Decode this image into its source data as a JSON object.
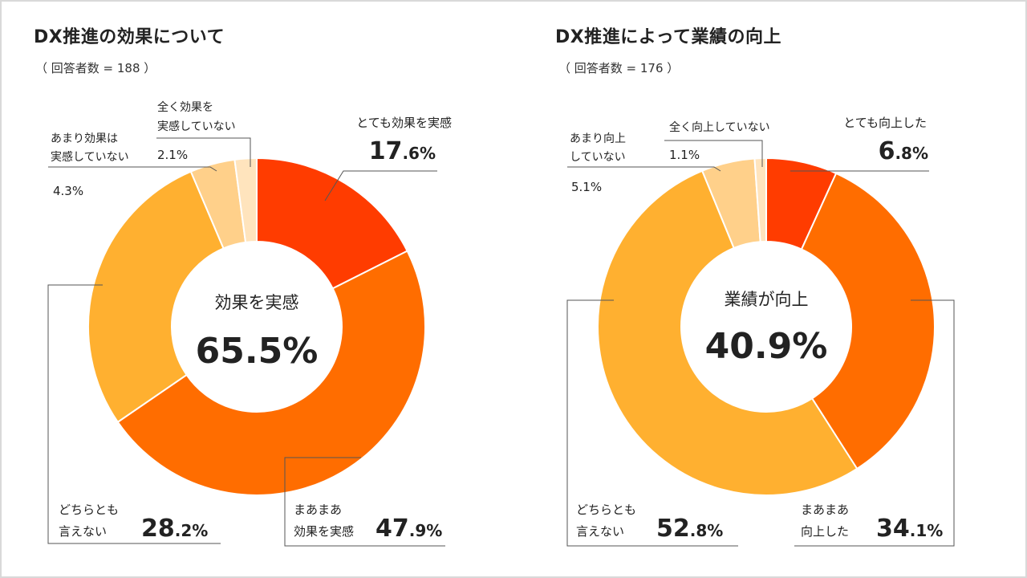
{
  "chart_data": [
    {
      "type": "pie",
      "title": "DX推進の効果について",
      "subtitle": "（ 回答者数 = 188 ）",
      "center": {
        "label": "効果を実感",
        "value": "65.5%"
      },
      "slices": [
        {
          "label": [
            "とても効果を実感"
          ],
          "value": 17.6,
          "int": "17",
          "dec": ".6%",
          "color": "#ff3c00"
        },
        {
          "label": [
            "まあまあ",
            "効果を実感"
          ],
          "value": 47.9,
          "int": "47",
          "dec": ".9%",
          "color": "#ff6d00"
        },
        {
          "label": [
            "どちらとも",
            "言えない"
          ],
          "value": 28.2,
          "int": "28",
          "dec": ".2%",
          "color": "#ffb030"
        },
        {
          "label": [
            "あまり効果は",
            "実感していない"
          ],
          "value": 4.3,
          "text": "4.3%",
          "color": "#ffd08a"
        },
        {
          "label": [
            "全く効果を",
            "実感していない"
          ],
          "value": 2.1,
          "text": "2.1%",
          "color": "#ffe4bd"
        }
      ]
    },
    {
      "type": "pie",
      "title": "DX推進によって業績の向上",
      "subtitle": "（ 回答者数 = 176 ）",
      "center": {
        "label": "業績が向上",
        "value": "40.9%"
      },
      "slices": [
        {
          "label": [
            "とても向上した"
          ],
          "value": 6.8,
          "int": "6",
          "dec": ".8%",
          "color": "#ff3c00"
        },
        {
          "label": [
            "まあまあ",
            "向上した"
          ],
          "value": 34.1,
          "int": "34",
          "dec": ".1%",
          "color": "#ff6d00"
        },
        {
          "label": [
            "どちらとも",
            "言えない"
          ],
          "value": 52.8,
          "int": "52",
          "dec": ".8%",
          "color": "#ffb030"
        },
        {
          "label": [
            "あまり向上",
            "していない"
          ],
          "value": 5.1,
          "text": "5.1%",
          "color": "#ffd08a"
        },
        {
          "label": [
            "全く向上していない"
          ],
          "value": 1.1,
          "text": "1.1%",
          "color": "#ffe4bd"
        }
      ]
    }
  ]
}
